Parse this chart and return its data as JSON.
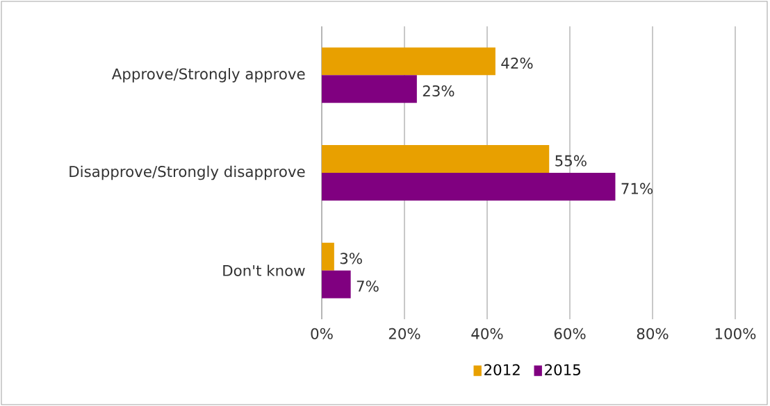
{
  "chart_data": {
    "type": "bar",
    "orientation": "horizontal",
    "categories": [
      "Approve/Strongly approve",
      "Disapprove/Strongly disapprove",
      "Don't know"
    ],
    "series": [
      {
        "name": "2012",
        "color": "#e8a000",
        "values": [
          42,
          55,
          3
        ],
        "value_labels": [
          "42%",
          "55%",
          "3%"
        ]
      },
      {
        "name": "2015",
        "color": "#800080",
        "values": [
          23,
          71,
          7
        ],
        "value_labels": [
          "23%",
          "71%",
          "7%"
        ]
      }
    ],
    "xlim": [
      0,
      100
    ],
    "xticks": [
      {
        "value": 0,
        "label": "0%"
      },
      {
        "value": 20,
        "label": "20%"
      },
      {
        "value": 40,
        "label": "40%"
      },
      {
        "value": 60,
        "label": "60%"
      },
      {
        "value": 80,
        "label": "80%"
      },
      {
        "value": 100,
        "label": "100%"
      }
    ],
    "grid": "x",
    "legend": "bottom"
  }
}
